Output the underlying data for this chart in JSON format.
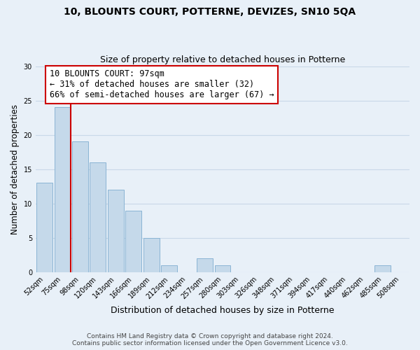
{
  "title": "10, BLOUNTS COURT, POTTERNE, DEVIZES, SN10 5QA",
  "subtitle": "Size of property relative to detached houses in Potterne",
  "xlabel": "Distribution of detached houses by size in Potterne",
  "ylabel": "Number of detached properties",
  "footer_line1": "Contains HM Land Registry data © Crown copyright and database right 2024.",
  "footer_line2": "Contains public sector information licensed under the Open Government Licence v3.0.",
  "bin_labels": [
    "52sqm",
    "75sqm",
    "98sqm",
    "120sqm",
    "143sqm",
    "166sqm",
    "189sqm",
    "212sqm",
    "234sqm",
    "257sqm",
    "280sqm",
    "303sqm",
    "326sqm",
    "348sqm",
    "371sqm",
    "394sqm",
    "417sqm",
    "440sqm",
    "462sqm",
    "485sqm",
    "508sqm"
  ],
  "bar_values": [
    13,
    24,
    19,
    16,
    12,
    9,
    5,
    1,
    0,
    2,
    1,
    0,
    0,
    0,
    0,
    0,
    0,
    0,
    0,
    1,
    0
  ],
  "bar_color": "#c5d9ea",
  "bar_edge_color": "#8ab4d4",
  "highlight_line_index": 1,
  "highlight_line_color": "#cc0000",
  "ann_title": "10 BLOUNTS COURT: 97sqm",
  "ann_line2": "← 31% of detached houses are smaller (32)",
  "ann_line3": "66% of semi-detached houses are larger (67) →",
  "ann_box_color": "#ffffff",
  "ann_box_edge_color": "#cc0000",
  "ann_fontsize": 8.5,
  "ylim": [
    0,
    30
  ],
  "yticks": [
    0,
    5,
    10,
    15,
    20,
    25,
    30
  ],
  "grid_color": "#c8d8e8",
  "background_color": "#e8f0f8",
  "title_fontsize": 10,
  "subtitle_fontsize": 9,
  "xlabel_fontsize": 9,
  "ylabel_fontsize": 8.5,
  "tick_fontsize": 7,
  "footer_fontsize": 6.5
}
